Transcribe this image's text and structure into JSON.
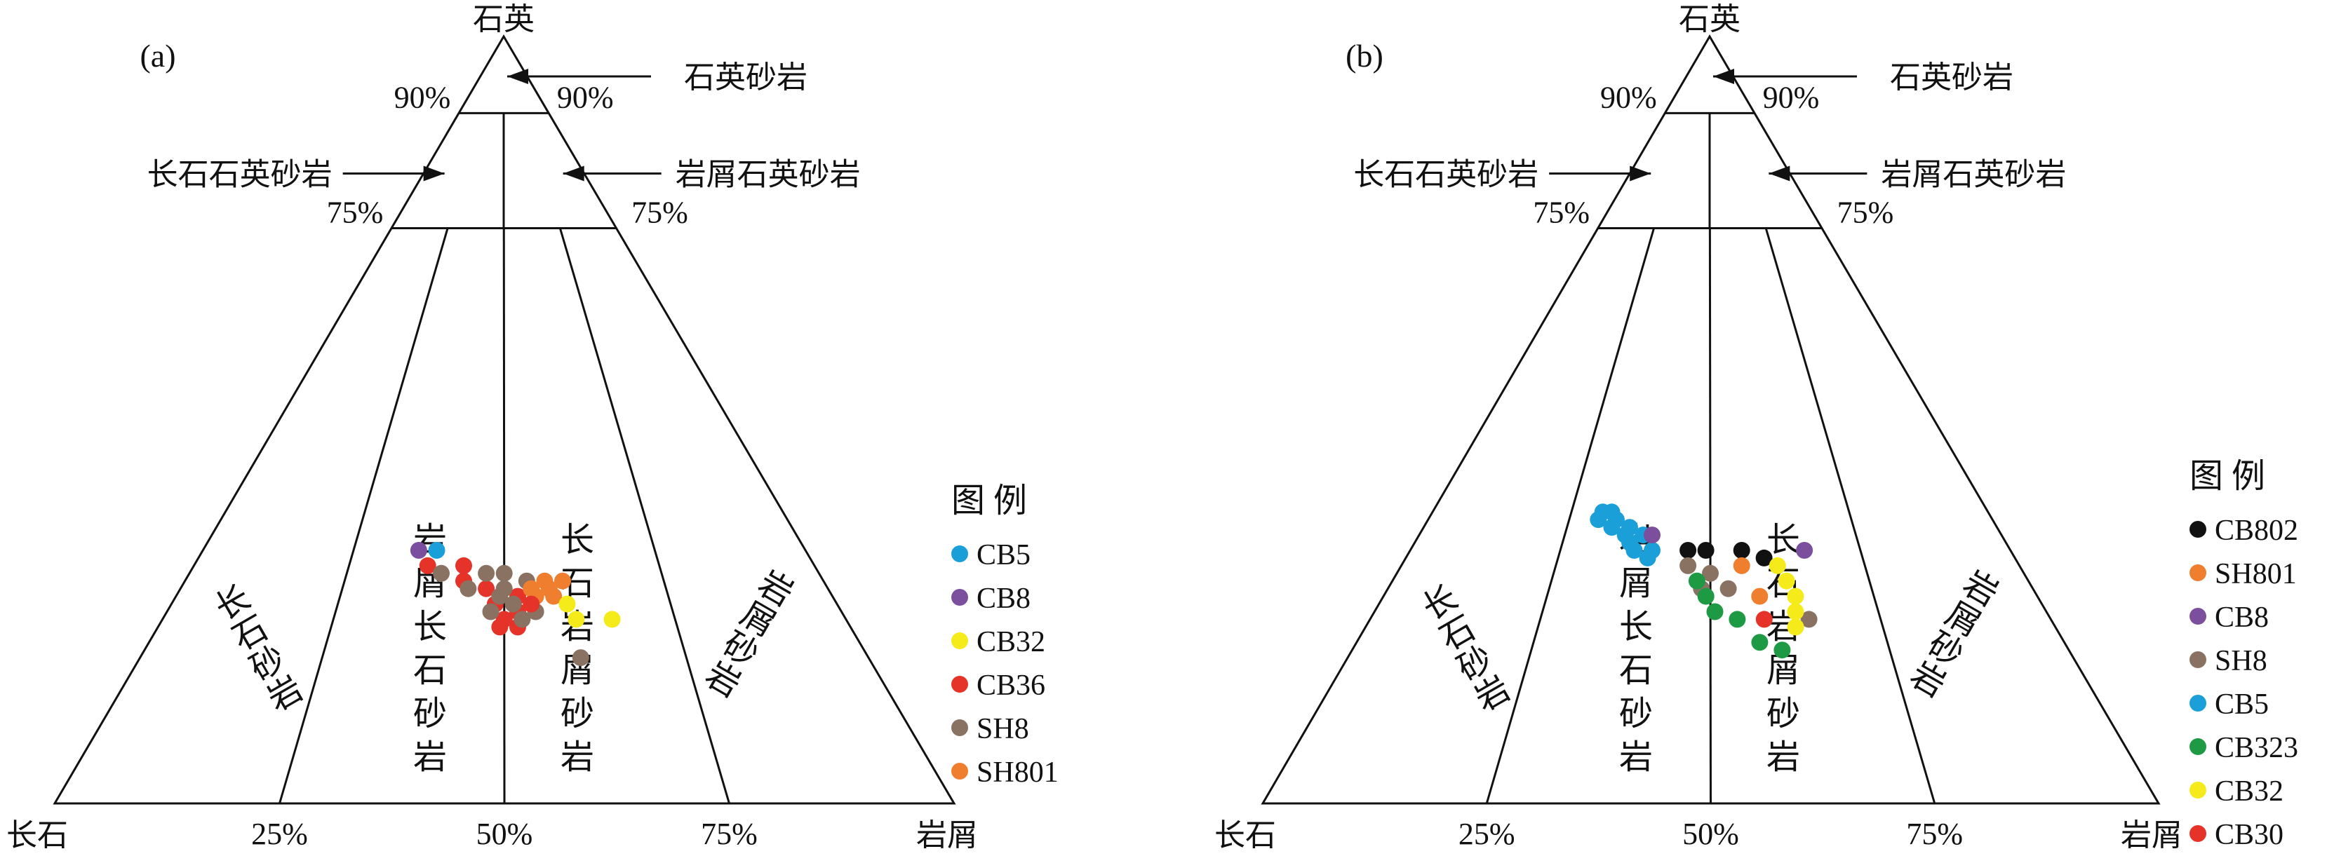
{
  "panels": [
    {
      "tag": "(a)",
      "vertices": {
        "top": "石英",
        "left": "长石",
        "right": "岩屑"
      },
      "bottom_ticks": [
        "25%",
        "50%",
        "75%"
      ],
      "pct_labels": {
        "ninety_left": "90%",
        "ninety_right": "90%",
        "seventyfive_left": "75%",
        "seventyfive_right": "75%"
      },
      "callouts": {
        "quartz_sandstone": "石英砂岩",
        "feldspathic_quartz_sandstone": "长石石英砂岩",
        "lithic_quartz_sandstone": "岩屑石英砂岩"
      },
      "fields": {
        "arkose": "长石砂岩",
        "lithic_arkose": "岩屑长石砂岩",
        "feldspathic_litharenite": "长石岩屑砂岩",
        "litharenite": "岩屑砂岩"
      },
      "legend_title": "图 例",
      "legend": [
        {
          "name": "CB5",
          "color": "#1a9fd9"
        },
        {
          "name": "CB8",
          "color": "#7b4f9d"
        },
        {
          "name": "CB32",
          "color": "#f5ea1a"
        },
        {
          "name": "CB36",
          "color": "#e5332a"
        },
        {
          "name": "SH8",
          "color": "#8a7263"
        },
        {
          "name": "SH801",
          "color": "#ef7f2e"
        }
      ],
      "points": [
        {
          "sample": "CB5",
          "q": 0.33,
          "f": 0.41,
          "l": 0.26
        },
        {
          "sample": "CB8",
          "q": 0.33,
          "f": 0.43,
          "l": 0.24
        },
        {
          "sample": "CB36",
          "q": 0.31,
          "f": 0.43,
          "l": 0.26
        },
        {
          "sample": "CB36",
          "q": 0.31,
          "f": 0.39,
          "l": 0.3
        },
        {
          "sample": "CB36",
          "q": 0.29,
          "f": 0.4,
          "l": 0.31
        },
        {
          "sample": "CB36",
          "q": 0.28,
          "f": 0.38,
          "l": 0.34
        },
        {
          "sample": "CB36",
          "q": 0.26,
          "f": 0.38,
          "l": 0.36
        },
        {
          "sample": "CB36",
          "q": 0.24,
          "f": 0.38,
          "l": 0.38
        },
        {
          "sample": "CB36",
          "q": 0.23,
          "f": 0.39,
          "l": 0.38
        },
        {
          "sample": "CB36",
          "q": 0.23,
          "f": 0.37,
          "l": 0.4
        },
        {
          "sample": "CB36",
          "q": 0.25,
          "f": 0.36,
          "l": 0.39
        },
        {
          "sample": "CB36",
          "q": 0.27,
          "f": 0.35,
          "l": 0.38
        },
        {
          "sample": "SH8",
          "q": 0.3,
          "f": 0.42,
          "l": 0.28
        },
        {
          "sample": "SH8",
          "q": 0.28,
          "f": 0.4,
          "l": 0.32
        },
        {
          "sample": "SH8",
          "q": 0.3,
          "f": 0.37,
          "l": 0.33
        },
        {
          "sample": "SH8",
          "q": 0.3,
          "f": 0.35,
          "l": 0.35
        },
        {
          "sample": "SH8",
          "q": 0.27,
          "f": 0.37,
          "l": 0.36
        },
        {
          "sample": "SH8",
          "q": 0.26,
          "f": 0.36,
          "l": 0.38
        },
        {
          "sample": "SH8",
          "q": 0.25,
          "f": 0.39,
          "l": 0.36
        },
        {
          "sample": "SH8",
          "q": 0.24,
          "f": 0.36,
          "l": 0.4
        },
        {
          "sample": "SH8",
          "q": 0.27,
          "f": 0.33,
          "l": 0.4
        },
        {
          "sample": "SH8",
          "q": 0.29,
          "f": 0.33,
          "l": 0.38
        },
        {
          "sample": "SH8",
          "q": 0.25,
          "f": 0.34,
          "l": 0.41
        },
        {
          "sample": "SH8",
          "q": 0.28,
          "f": 0.36,
          "l": 0.36
        },
        {
          "sample": "SH8",
          "q": 0.19,
          "f": 0.32,
          "l": 0.49
        },
        {
          "sample": "SH801",
          "q": 0.28,
          "f": 0.33,
          "l": 0.39
        },
        {
          "sample": "SH801",
          "q": 0.28,
          "f": 0.31,
          "l": 0.41
        },
        {
          "sample": "SH801",
          "q": 0.27,
          "f": 0.31,
          "l": 0.42
        },
        {
          "sample": "SH801",
          "q": 0.29,
          "f": 0.31,
          "l": 0.4
        },
        {
          "sample": "SH801",
          "q": 0.29,
          "f": 0.29,
          "l": 0.42
        },
        {
          "sample": "SH801",
          "q": 0.27,
          "f": 0.33,
          "l": 0.4
        },
        {
          "sample": "CB32",
          "q": 0.26,
          "f": 0.3,
          "l": 0.44
        },
        {
          "sample": "CB32",
          "q": 0.24,
          "f": 0.3,
          "l": 0.46
        },
        {
          "sample": "CB32",
          "q": 0.24,
          "f": 0.26,
          "l": 0.5
        },
        {
          "sample": "CB36",
          "q": 0.26,
          "f": 0.34,
          "l": 0.4
        }
      ]
    },
    {
      "tag": "(b)",
      "vertices": {
        "top": "石英",
        "left": "长石",
        "right": "岩屑"
      },
      "bottom_ticks": [
        "25%",
        "50%",
        "75%"
      ],
      "pct_labels": {
        "ninety_left": "90%",
        "ninety_right": "90%",
        "seventyfive_left": "75%",
        "seventyfive_right": "75%"
      },
      "callouts": {
        "quartz_sandstone": "石英砂岩",
        "feldspathic_quartz_sandstone": "长石石英砂岩",
        "lithic_quartz_sandstone": "岩屑石英砂岩"
      },
      "fields": {
        "arkose": "长石砂岩",
        "lithic_arkose": "岩屑长石砂岩",
        "feldspathic_litharenite": "长石岩屑砂岩",
        "litharenite": "岩屑砂岩"
      },
      "legend_title": "图 例",
      "legend": [
        {
          "name": "CB802",
          "color": "#111111"
        },
        {
          "name": "SH801",
          "color": "#ef7f2e"
        },
        {
          "name": "CB8",
          "color": "#7b4f9d"
        },
        {
          "name": "SH8",
          "color": "#8a7263"
        },
        {
          "name": "CB5",
          "color": "#1a9fd9"
        },
        {
          "name": "CB323",
          "color": "#1e9a45"
        },
        {
          "name": "CB32",
          "color": "#f5ea1a"
        },
        {
          "name": "CB30",
          "color": "#e5332a"
        }
      ],
      "points": [
        {
          "sample": "CB5",
          "q": 0.37,
          "f": 0.44,
          "l": 0.19
        },
        {
          "sample": "CB5",
          "q": 0.38,
          "f": 0.43,
          "l": 0.19
        },
        {
          "sample": "CB5",
          "q": 0.38,
          "f": 0.42,
          "l": 0.2
        },
        {
          "sample": "CB5",
          "q": 0.37,
          "f": 0.42,
          "l": 0.21
        },
        {
          "sample": "CB5",
          "q": 0.36,
          "f": 0.43,
          "l": 0.21
        },
        {
          "sample": "CB5",
          "q": 0.36,
          "f": 0.41,
          "l": 0.23
        },
        {
          "sample": "CB5",
          "q": 0.35,
          "f": 0.42,
          "l": 0.23
        },
        {
          "sample": "CB5",
          "q": 0.34,
          "f": 0.42,
          "l": 0.24
        },
        {
          "sample": "CB5",
          "q": 0.33,
          "f": 0.42,
          "l": 0.25
        },
        {
          "sample": "CB5",
          "q": 0.33,
          "f": 0.4,
          "l": 0.27
        },
        {
          "sample": "CB5",
          "q": 0.35,
          "f": 0.4,
          "l": 0.25
        },
        {
          "sample": "CB5",
          "q": 0.32,
          "f": 0.41,
          "l": 0.27
        },
        {
          "sample": "CB8",
          "q": 0.35,
          "f": 0.39,
          "l": 0.26
        },
        {
          "sample": "CB8",
          "q": 0.33,
          "f": 0.23,
          "l": 0.44
        },
        {
          "sample": "CB802",
          "q": 0.33,
          "f": 0.36,
          "l": 0.31
        },
        {
          "sample": "CB802",
          "q": 0.33,
          "f": 0.34,
          "l": 0.33
        },
        {
          "sample": "CB802",
          "q": 0.33,
          "f": 0.3,
          "l": 0.37
        },
        {
          "sample": "CB802",
          "q": 0.32,
          "f": 0.28,
          "l": 0.4
        },
        {
          "sample": "SH8",
          "q": 0.31,
          "f": 0.37,
          "l": 0.32
        },
        {
          "sample": "SH8",
          "q": 0.3,
          "f": 0.35,
          "l": 0.35
        },
        {
          "sample": "SH8",
          "q": 0.28,
          "f": 0.37,
          "l": 0.35
        },
        {
          "sample": "SH8",
          "q": 0.28,
          "f": 0.34,
          "l": 0.38
        },
        {
          "sample": "SH8",
          "q": 0.24,
          "f": 0.27,
          "l": 0.49
        },
        {
          "sample": "SH801",
          "q": 0.31,
          "f": 0.31,
          "l": 0.38
        },
        {
          "sample": "SH801",
          "q": 0.27,
          "f": 0.31,
          "l": 0.42
        },
        {
          "sample": "CB32",
          "q": 0.31,
          "f": 0.27,
          "l": 0.42
        },
        {
          "sample": "CB32",
          "q": 0.29,
          "f": 0.27,
          "l": 0.44
        },
        {
          "sample": "CB32",
          "q": 0.27,
          "f": 0.27,
          "l": 0.46
        },
        {
          "sample": "CB32",
          "q": 0.25,
          "f": 0.28,
          "l": 0.47
        },
        {
          "sample": "CB32",
          "q": 0.23,
          "f": 0.29,
          "l": 0.48
        },
        {
          "sample": "CB323",
          "q": 0.29,
          "f": 0.37,
          "l": 0.34
        },
        {
          "sample": "CB323",
          "q": 0.27,
          "f": 0.37,
          "l": 0.36
        },
        {
          "sample": "CB323",
          "q": 0.25,
          "f": 0.37,
          "l": 0.38
        },
        {
          "sample": "CB323",
          "q": 0.24,
          "f": 0.35,
          "l": 0.41
        },
        {
          "sample": "CB323",
          "q": 0.21,
          "f": 0.34,
          "l": 0.45
        },
        {
          "sample": "CB323",
          "q": 0.2,
          "f": 0.32,
          "l": 0.48
        },
        {
          "sample": "CB30",
          "q": 0.24,
          "f": 0.32,
          "l": 0.44
        }
      ]
    }
  ]
}
